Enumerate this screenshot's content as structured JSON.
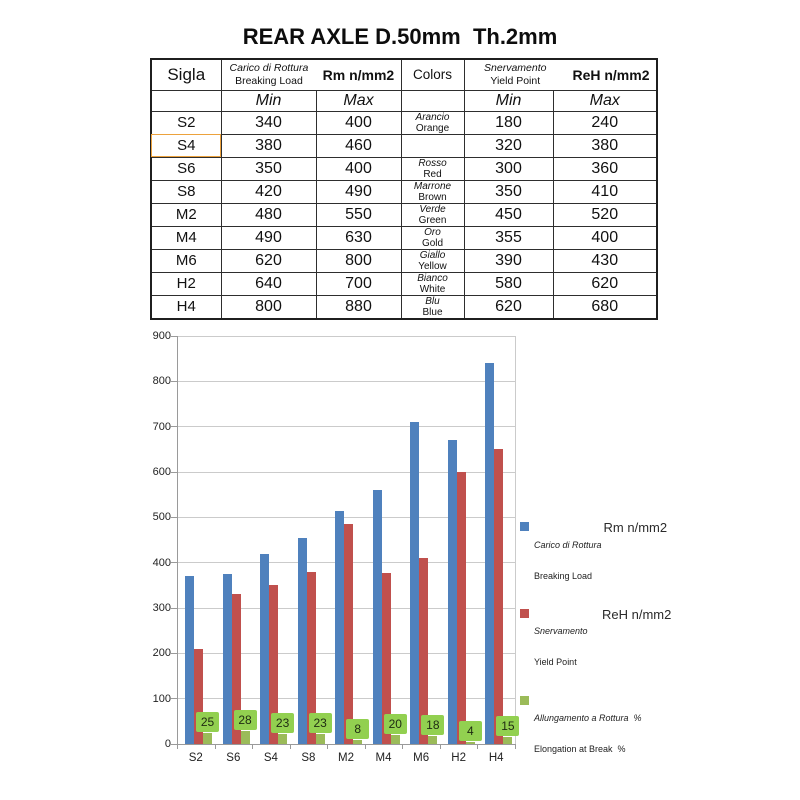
{
  "page": {
    "title": "REAR AXLE D.50mm  Th.2mm"
  },
  "table": {
    "header": {
      "sigla": "Sigla",
      "breaking_load_it": "Carico di Rottura",
      "breaking_load_en": "Breaking Load",
      "rm_unit": "Rm n/mm2",
      "colors": "Colors",
      "yield_it": "Snervamento",
      "yield_en": "Yield Point",
      "reh_unit": "ReH n/mm2",
      "min": "Min",
      "max": "Max"
    },
    "rows": [
      {
        "sigla": "S2",
        "rm_min": "340",
        "rm_max": "400",
        "color_it": "Arancio",
        "color_en": "Orange",
        "reh_min": "180",
        "reh_max": "240",
        "highlight": false
      },
      {
        "sigla": "S4",
        "rm_min": "380",
        "rm_max": "460",
        "color_it": "",
        "color_en": "",
        "reh_min": "320",
        "reh_max": "380",
        "highlight": true
      },
      {
        "sigla": "S6",
        "rm_min": "350",
        "rm_max": "400",
        "color_it": "Rosso",
        "color_en": "Red",
        "reh_min": "300",
        "reh_max": "360",
        "highlight": false
      },
      {
        "sigla": "S8",
        "rm_min": "420",
        "rm_max": "490",
        "color_it": "Marrone",
        "color_en": "Brown",
        "reh_min": "350",
        "reh_max": "410",
        "highlight": false
      },
      {
        "sigla": "M2",
        "rm_min": "480",
        "rm_max": "550",
        "color_it": "Verde",
        "color_en": "Green",
        "reh_min": "450",
        "reh_max": "520",
        "highlight": false
      },
      {
        "sigla": "M4",
        "rm_min": "490",
        "rm_max": "630",
        "color_it": "Oro",
        "color_en": "Gold",
        "reh_min": "355",
        "reh_max": "400",
        "highlight": false
      },
      {
        "sigla": "M6",
        "rm_min": "620",
        "rm_max": "800",
        "color_it": "Giallo",
        "color_en": "Yellow",
        "reh_min": "390",
        "reh_max": "430",
        "highlight": false
      },
      {
        "sigla": "H2",
        "rm_min": "640",
        "rm_max": "700",
        "color_it": "Bianco",
        "color_en": "White",
        "reh_min": "580",
        "reh_max": "620",
        "highlight": false
      },
      {
        "sigla": "H4",
        "rm_min": "800",
        "rm_max": "880",
        "color_it": "Blu",
        "color_en": "Blue",
        "reh_min": "620",
        "reh_max": "680",
        "highlight": false
      }
    ]
  },
  "chart_data": {
    "type": "bar",
    "categories": [
      "S2",
      "S6",
      "S4",
      "S8",
      "M2",
      "M4",
      "M6",
      "H2",
      "H4"
    ],
    "series": [
      {
        "name": "Carico di Rottura / Breaking Load (Rm n/mm2)",
        "color": "#4F81BD",
        "values": [
          370,
          375,
          420,
          455,
          515,
          560,
          710,
          670,
          840
        ]
      },
      {
        "name": "Snervamento / Yield Point (ReH n/mm2)",
        "color": "#C0504D",
        "values": [
          210,
          330,
          350,
          380,
          485,
          378,
          410,
          600,
          650
        ]
      },
      {
        "name": "Allungamento a Rottura % / Elongation at Break %",
        "color": "#9BBB59",
        "values": [
          25,
          28,
          23,
          23,
          8,
          20,
          18,
          4,
          15
        ],
        "data_labels": true
      }
    ],
    "ylim": [
      0,
      900
    ],
    "yticks": [
      0,
      100,
      200,
      300,
      400,
      500,
      600,
      700,
      800,
      900
    ],
    "grid": true,
    "legend_position": "right",
    "label_box_color": "#92D050",
    "legend": [
      {
        "line1": "Carico di Rottura",
        "line2": "Breaking Load",
        "unit": "Rm n/mm2",
        "color": "#4F81BD"
      },
      {
        "line1": "Snervamento",
        "line2": "Yield Point",
        "unit": "ReH n/mm2",
        "color": "#C0504D"
      },
      {
        "line1": "Allungamento a Rottura  %",
        "line2": "Elongation at Break  %",
        "unit": "",
        "color": "#9BBB59"
      }
    ]
  }
}
